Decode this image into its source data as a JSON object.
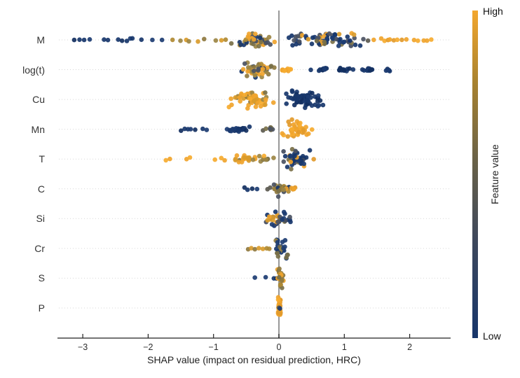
{
  "chart_data": {
    "type": "scatter",
    "subtype": "shap-beeswarm-summary",
    "title": "",
    "xlabel": "SHAP value (impact on residual prediction, HRC)",
    "ylabel": "",
    "x_tick_values": [
      -3,
      -2,
      -1,
      0,
      1,
      2
    ],
    "x_tick_labels": [
      "−3",
      "−2",
      "−1",
      "0",
      "1",
      "2"
    ],
    "x_range": [
      -3.39,
      2.63
    ],
    "grid": "dotted horizontal per feature row",
    "zero_line": true,
    "features": [
      "M",
      "log(t)",
      "Cu",
      "Mn",
      "T",
      "C",
      "Si",
      "Cr",
      "S",
      "P"
    ],
    "colorbar": {
      "label": "Feature value",
      "high_label": "High",
      "low_label": "Low",
      "gradient": [
        {
          "offset": 0.0,
          "color": "#17366b"
        },
        {
          "offset": 0.3,
          "color": "#3e485c"
        },
        {
          "offset": 0.55,
          "color": "#6b6347"
        },
        {
          "offset": 0.78,
          "color": "#a8822f"
        },
        {
          "offset": 1.0,
          "color": "#f3a72e"
        }
      ]
    },
    "colors": {
      "low_navy": "#17366b",
      "high_gold": "#f0a42d",
      "mid_olive": "#7a7048",
      "mid_slate": "#4b5263",
      "zero_line": "#8c8c8c",
      "axis": "#222222",
      "gridline": "#d7d7d7"
    },
    "palettes": {
      "low": [
        "#17366b",
        "#1c3c72",
        "#122f60",
        "#17366b"
      ],
      "high": [
        "#f0a42d",
        "#f6ab2f",
        "#e29a2b",
        "#f0a42d"
      ],
      "mid": [
        "#4b5263",
        "#7a7048",
        "#5c5a50"
      ],
      "gold_olive": [
        "#b08a33",
        "#8f7a40",
        "#d99b2b",
        "#9c8644"
      ],
      "mixed_warm": [
        "#7a7048",
        "#9c8644",
        "#b08a33",
        "#f0a42d",
        "#f0a42d",
        "#4b5263",
        "#17366b",
        "#8f7a40"
      ],
      "mixed_cool": [
        "#17366b",
        "#1c3c72",
        "#14316a",
        "#4b5263",
        "#434c5e",
        "#f0a42d",
        "#7a7048",
        "#17366b",
        "#d99b2b",
        "#1c3c72"
      ],
      "high_olive": [
        "#f0a42d",
        "#f6ab2f",
        "#d99b2b",
        "#9c8644",
        "#f0a42d",
        "#7a7048"
      ],
      "low_olive": [
        "#17366b",
        "#1c3c72",
        "#17366b",
        "#7a7048",
        "#9c8644"
      ],
      "olive_gold": [
        "#8f7a40",
        "#9c8644",
        "#f0a42d",
        "#7a7048",
        "#b08a33",
        "#f0a42d"
      ],
      "cool_gold": [
        "#17366b",
        "#1c3c72",
        "#434c5e",
        "#4b5263",
        "#f0a42d",
        "#7a7048",
        "#17366b",
        "#17366b"
      ]
    },
    "series": [
      {
        "feature": "M",
        "clusters": [
          {
            "points": [
              -3.12,
              -3.05,
              -2.98,
              -2.9,
              -2.67,
              -2.61,
              -2.45,
              -2.39,
              -2.33,
              -2.28,
              -2.24,
              -2.1,
              -1.94,
              -1.78
            ],
            "palette": "low",
            "jitter": 2.5
          },
          {
            "points": [
              -1.62,
              -1.51,
              -1.42,
              -1.38,
              -1.24,
              -1.15,
              -0.97,
              -0.88,
              -0.82
            ],
            "palette": "gold_olive",
            "jitter": 2.5
          },
          {
            "x_min": -0.75,
            "x_max": 0.02,
            "n": 48,
            "palette": "mixed_warm",
            "jitter": 11
          },
          {
            "x_min": 0.0,
            "x_max": 1.28,
            "n": 75,
            "palette": "mixed_cool",
            "jitter": 12
          },
          {
            "points": [
              1.3,
              1.36
            ],
            "palette": "mid",
            "jitter": 2
          },
          {
            "points": [
              1.46,
              1.56,
              1.61,
              1.66,
              1.69,
              1.75,
              1.8,
              1.88,
              1.94,
              2.07,
              2.12,
              2.21,
              2.27,
              2.32
            ],
            "palette": "high",
            "jitter": 2.5
          }
        ]
      },
      {
        "feature": "log(t)",
        "clusters": [
          {
            "x_min": -0.62,
            "x_max": 0.0,
            "n": 55,
            "palette": "mixed_warm",
            "jitter": 12
          },
          {
            "x_min": 0.01,
            "x_max": 0.2,
            "n": 9,
            "palette": "high",
            "jitter": 4
          },
          {
            "points": [
              0.48
            ],
            "palette": "low",
            "jitter": 1
          },
          {
            "x_min": 0.57,
            "x_max": 0.8,
            "n": 10,
            "palette": "low",
            "jitter": 3
          },
          {
            "x_min": 0.88,
            "x_max": 1.21,
            "n": 12,
            "palette": "low",
            "jitter": 3
          },
          {
            "x_min": 1.23,
            "x_max": 1.5,
            "n": 10,
            "palette": "low",
            "jitter": 3
          },
          {
            "x_min": 1.61,
            "x_max": 1.77,
            "n": 6,
            "palette": "low",
            "jitter": 3
          }
        ]
      },
      {
        "feature": "Cu",
        "clusters": [
          {
            "x_min": -0.8,
            "x_max": -0.01,
            "n": 55,
            "palette": "high_olive",
            "jitter": 13
          },
          {
            "x_min": 0.05,
            "x_max": 0.7,
            "n": 60,
            "palette": "low",
            "jitter": 14
          }
        ]
      },
      {
        "feature": "Mn",
        "clusters": [
          {
            "points": [
              -1.5,
              -1.45,
              -1.4,
              -1.34,
              -1.28,
              -1.16,
              -1.1
            ],
            "palette": "low",
            "jitter": 2.5
          },
          {
            "x_min": -0.86,
            "x_max": -0.32,
            "n": 26,
            "palette": "low",
            "jitter": 4.5
          },
          {
            "x_min": -0.28,
            "x_max": -0.02,
            "n": 12,
            "palette": "mid",
            "jitter": 3.5
          },
          {
            "x_min": 0.0,
            "x_max": 0.56,
            "n": 42,
            "palette": "high",
            "jitter": 14
          }
        ]
      },
      {
        "feature": "T",
        "clusters": [
          {
            "points": [
              -1.72,
              -1.67,
              -1.42,
              -1.36,
              -0.98,
              -0.89,
              -0.83
            ],
            "palette": "high",
            "jitter": 2.5
          },
          {
            "x_min": -0.76,
            "x_max": -0.05,
            "n": 30,
            "palette": "high_olive",
            "jitter": 5.5
          },
          {
            "x_min": 0.02,
            "x_max": 0.5,
            "n": 46,
            "palette": "cool_gold",
            "jitter": 16
          },
          {
            "points": [
              0.54
            ],
            "palette": "high",
            "jitter": 1
          }
        ]
      },
      {
        "feature": "C",
        "clusters": [
          {
            "points": [
              -0.53,
              -0.48,
              -0.4,
              -0.33
            ],
            "palette": "low",
            "jitter": 2
          },
          {
            "points": [
              -0.17,
              -0.13
            ],
            "palette": "mid",
            "jitter": 2
          },
          {
            "x_min": -0.12,
            "x_max": 0.2,
            "n": 30,
            "palette": "mixed_warm",
            "jitter": 13
          },
          {
            "x_min": 0.15,
            "x_max": 0.27,
            "n": 6,
            "palette": "high",
            "jitter": 4
          }
        ]
      },
      {
        "feature": "Si",
        "clusters": [
          {
            "x_min": -0.25,
            "x_max": 0.27,
            "n": 36,
            "palette": "mixed_cool",
            "jitter": 13
          }
        ]
      },
      {
        "feature": "Cr",
        "clusters": [
          {
            "points": [
              -0.48,
              -0.42,
              -0.36,
              -0.3,
              -0.24,
              -0.19,
              -0.14
            ],
            "palette": "gold_olive",
            "jitter": 2
          },
          {
            "x_min": -0.06,
            "x_max": 0.16,
            "n": 26,
            "palette": "low_olive",
            "jitter": 17
          }
        ]
      },
      {
        "feature": "S",
        "clusters": [
          {
            "points": [
              -0.37,
              -0.21,
              -0.08,
              -0.04
            ],
            "palette": "low",
            "jitter": 2
          },
          {
            "x_min": -0.03,
            "x_max": 0.09,
            "n": 26,
            "palette": "olive_gold",
            "jitter": 17
          }
        ]
      },
      {
        "feature": "P",
        "clusters": [
          {
            "x_min": -0.02,
            "x_max": 0.03,
            "n": 30,
            "palette": "high",
            "jitter": 17
          },
          {
            "points": [
              0.0
            ],
            "palette": "mid",
            "jitter": 1
          },
          {
            "points": [
              0.01
            ],
            "palette": "low",
            "jitter": 1
          }
        ]
      }
    ]
  }
}
